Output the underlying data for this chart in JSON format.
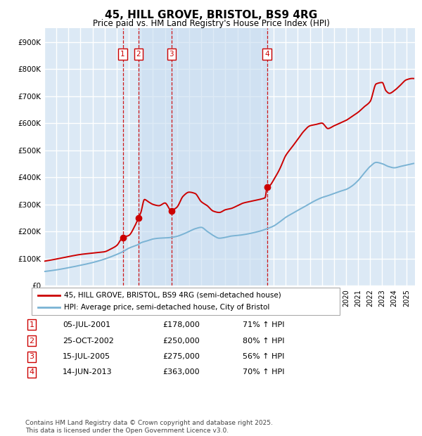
{
  "title": "45, HILL GROVE, BRISTOL, BS9 4RG",
  "subtitle": "Price paid vs. HM Land Registry's House Price Index (HPI)",
  "legend_line1": "45, HILL GROVE, BRISTOL, BS9 4RG (semi-detached house)",
  "legend_line2": "HPI: Average price, semi-detached house, City of Bristol",
  "transactions": [
    {
      "num": 1,
      "date_x": 2001.5,
      "price": 178000,
      "pct": "71%",
      "label": "05-JUL-2001",
      "price_label": "£178,000"
    },
    {
      "num": 2,
      "date_x": 2002.8,
      "price": 250000,
      "pct": "80%",
      "label": "25-OCT-2002",
      "price_label": "£250,000"
    },
    {
      "num": 3,
      "date_x": 2005.54,
      "price": 275000,
      "pct": "56%",
      "label": "15-JUL-2005",
      "price_label": "£275,000"
    },
    {
      "num": 4,
      "date_x": 2013.45,
      "price": 363000,
      "pct": "70%",
      "label": "14-JUN-2013",
      "price_label": "£363,000"
    }
  ],
  "footer": "Contains HM Land Registry data © Crown copyright and database right 2025.\nThis data is licensed under the Open Government Licence v3.0.",
  "background_color": "#ffffff",
  "plot_bg_color": "#dce9f5",
  "shade_color": "#c8ddf0",
  "grid_color": "#ffffff",
  "red_color": "#cc0000",
  "blue_color": "#7ab3d4",
  "ylim": [
    0,
    950000
  ],
  "yticks": [
    0,
    100000,
    200000,
    300000,
    400000,
    500000,
    600000,
    700000,
    800000,
    900000
  ],
  "xlim": [
    1995,
    2025.7
  ],
  "hpi_points": [
    [
      1995.0,
      52000
    ],
    [
      1996.0,
      58000
    ],
    [
      1997.0,
      66000
    ],
    [
      1998.0,
      75000
    ],
    [
      1999.0,
      85000
    ],
    [
      2000.0,
      98000
    ],
    [
      2001.0,
      115000
    ],
    [
      2001.5,
      125000
    ],
    [
      2002.0,
      138000
    ],
    [
      2002.8,
      152000
    ],
    [
      2003.0,
      158000
    ],
    [
      2003.5,
      165000
    ],
    [
      2004.0,
      172000
    ],
    [
      2004.5,
      175000
    ],
    [
      2005.0,
      176000
    ],
    [
      2005.54,
      178000
    ],
    [
      2006.0,
      182000
    ],
    [
      2006.5,
      190000
    ],
    [
      2007.0,
      200000
    ],
    [
      2007.5,
      210000
    ],
    [
      2008.0,
      215000
    ],
    [
      2008.5,
      200000
    ],
    [
      2009.0,
      185000
    ],
    [
      2009.5,
      175000
    ],
    [
      2010.0,
      178000
    ],
    [
      2010.5,
      183000
    ],
    [
      2011.0,
      185000
    ],
    [
      2011.5,
      188000
    ],
    [
      2012.0,
      192000
    ],
    [
      2012.5,
      197000
    ],
    [
      2013.0,
      203000
    ],
    [
      2013.45,
      210000
    ],
    [
      2014.0,
      220000
    ],
    [
      2014.5,
      235000
    ],
    [
      2015.0,
      252000
    ],
    [
      2015.5,
      265000
    ],
    [
      2016.0,
      278000
    ],
    [
      2016.5,
      290000
    ],
    [
      2017.0,
      303000
    ],
    [
      2017.5,
      315000
    ],
    [
      2018.0,
      325000
    ],
    [
      2018.5,
      332000
    ],
    [
      2019.0,
      340000
    ],
    [
      2019.5,
      348000
    ],
    [
      2020.0,
      355000
    ],
    [
      2020.5,
      368000
    ],
    [
      2021.0,
      388000
    ],
    [
      2021.5,
      415000
    ],
    [
      2022.0,
      440000
    ],
    [
      2022.5,
      455000
    ],
    [
      2023.0,
      450000
    ],
    [
      2023.5,
      440000
    ],
    [
      2024.0,
      435000
    ],
    [
      2024.5,
      440000
    ],
    [
      2025.0,
      445000
    ],
    [
      2025.5,
      450000
    ]
  ],
  "prop_points": [
    [
      1995.0,
      90000
    ],
    [
      1996.0,
      98000
    ],
    [
      1997.0,
      107000
    ],
    [
      1998.0,
      115000
    ],
    [
      1999.0,
      120000
    ],
    [
      2000.0,
      125000
    ],
    [
      2000.5,
      135000
    ],
    [
      2001.0,
      148000
    ],
    [
      2001.5,
      178000
    ],
    [
      2002.0,
      185000
    ],
    [
      2002.5,
      220000
    ],
    [
      2002.8,
      250000
    ],
    [
      2003.0,
      270000
    ],
    [
      2003.3,
      318000
    ],
    [
      2003.6,
      310000
    ],
    [
      2004.0,
      300000
    ],
    [
      2004.5,
      295000
    ],
    [
      2005.0,
      305000
    ],
    [
      2005.54,
      275000
    ],
    [
      2005.7,
      280000
    ],
    [
      2006.0,
      290000
    ],
    [
      2006.5,
      330000
    ],
    [
      2007.0,
      345000
    ],
    [
      2007.5,
      340000
    ],
    [
      2008.0,
      310000
    ],
    [
      2008.5,
      295000
    ],
    [
      2009.0,
      275000
    ],
    [
      2009.5,
      270000
    ],
    [
      2010.0,
      280000
    ],
    [
      2010.5,
      285000
    ],
    [
      2011.0,
      295000
    ],
    [
      2011.5,
      305000
    ],
    [
      2012.0,
      310000
    ],
    [
      2012.5,
      315000
    ],
    [
      2013.0,
      320000
    ],
    [
      2013.3,
      325000
    ],
    [
      2013.45,
      363000
    ],
    [
      2013.7,
      370000
    ],
    [
      2014.0,
      390000
    ],
    [
      2014.5,
      430000
    ],
    [
      2015.0,
      480000
    ],
    [
      2015.5,
      510000
    ],
    [
      2016.0,
      540000
    ],
    [
      2016.5,
      570000
    ],
    [
      2017.0,
      590000
    ],
    [
      2017.5,
      595000
    ],
    [
      2018.0,
      600000
    ],
    [
      2018.5,
      580000
    ],
    [
      2019.0,
      590000
    ],
    [
      2019.5,
      600000
    ],
    [
      2020.0,
      610000
    ],
    [
      2020.5,
      625000
    ],
    [
      2021.0,
      640000
    ],
    [
      2021.5,
      660000
    ],
    [
      2022.0,
      680000
    ],
    [
      2022.5,
      745000
    ],
    [
      2023.0,
      750000
    ],
    [
      2023.3,
      720000
    ],
    [
      2023.6,
      710000
    ],
    [
      2024.0,
      720000
    ],
    [
      2024.5,
      740000
    ],
    [
      2025.0,
      760000
    ],
    [
      2025.5,
      765000
    ]
  ]
}
